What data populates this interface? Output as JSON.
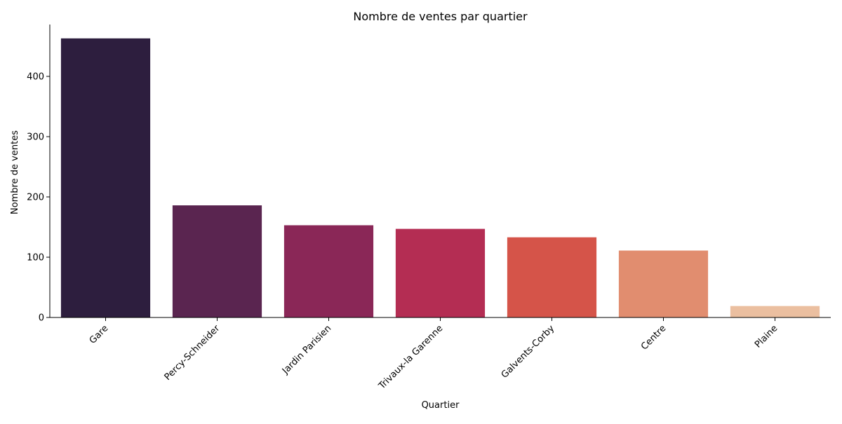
{
  "chart_data": {
    "type": "bar",
    "title": "Nombre de ventes par quartier",
    "xlabel": "Quartier",
    "ylabel": "Nombre de ventes",
    "categories": [
      "Gare",
      "Percy-Schneider",
      "Jardin Parisien",
      "Trivaux-la Garenne",
      "Galvents-Corby",
      "Centre",
      "Plaine"
    ],
    "values": [
      463,
      186,
      153,
      147,
      133,
      111,
      19
    ],
    "ylim": [
      0,
      486
    ],
    "yticks": [
      0,
      100,
      200,
      300,
      400
    ],
    "x_tick_rotation_deg": 45,
    "grid": false,
    "legend": "none",
    "colors": [
      "#2d1e3e",
      "#5a2550",
      "#8a2757",
      "#b42d53",
      "#d55449",
      "#e18d6f",
      "#ebbfa0"
    ]
  }
}
